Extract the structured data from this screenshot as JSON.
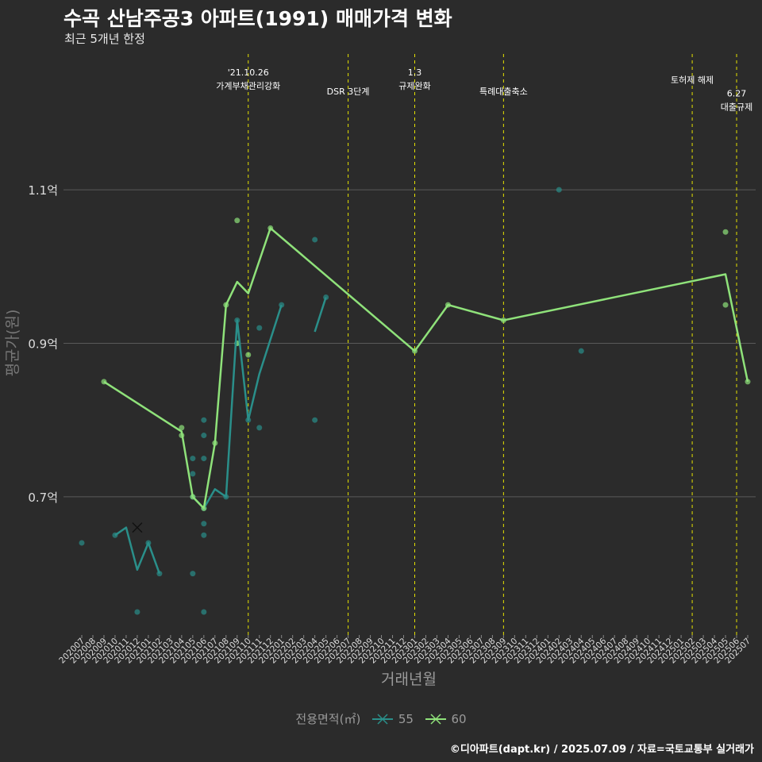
{
  "title": "수곡 산남주공3 아파트(1991) 매매가격 변화",
  "subtitle": "최근 5개년 한정",
  "caption": "©디아파트(dapt.kr) / 2025.07.09 / 자료=국토교통부 실거래가",
  "colors": {
    "background": "#2b2b2b",
    "grid": "#5a5a5a",
    "event_line": "#e5e200",
    "series_55": "#2a8f8a",
    "series_60": "#8fe27a"
  },
  "chart_data": {
    "type": "line",
    "xlabel": "거래년월",
    "ylabel": "평균가(원)",
    "x_categories": [
      "202007",
      "202008",
      "202009",
      "202010",
      "202011",
      "202012",
      "202101",
      "202102",
      "202103",
      "202104",
      "202105",
      "202106",
      "202107",
      "202108",
      "202109",
      "202110",
      "202111",
      "202112",
      "202201",
      "202202",
      "202203",
      "202204",
      "202205",
      "202206",
      "202207",
      "202208",
      "202209",
      "202210",
      "202211",
      "202212",
      "202301",
      "202302",
      "202303",
      "202304",
      "202305",
      "202306",
      "202307",
      "202308",
      "202309",
      "202310",
      "202311",
      "202312",
      "202401",
      "202402",
      "202403",
      "202404",
      "202405",
      "202406",
      "202407",
      "202408",
      "202409",
      "202410",
      "202411",
      "202412",
      "202501",
      "202502",
      "202503",
      "202504",
      "202505",
      "202506",
      "202507"
    ],
    "x_tick_labels": [
      "202007",
      "202008",
      "202009",
      "202010",
      "202011",
      "202012",
      "202101",
      "202102",
      "202103",
      "202104",
      "202105",
      "202106",
      "202107",
      "202108",
      "202109",
      "202110",
      "202111",
      "202112",
      "202201",
      "202202",
      "202203",
      "202204",
      "202205",
      "202206",
      "202207",
      "202208",
      "202209",
      "202210",
      "202211",
      "202212",
      "202301",
      "202302",
      "202303",
      "202304",
      "202305",
      "202306",
      "202307",
      "202308",
      "202309",
      "202310",
      "202311",
      "202312",
      "202401",
      "202402",
      "202403",
      "202404",
      "202405",
      "202406",
      "202407",
      "202408",
      "202409",
      "202410",
      "202411",
      "202412",
      "202501",
      "202502",
      "202503",
      "202504",
      "202505",
      "202506",
      "202507"
    ],
    "y_ticks": [
      {
        "value": 70000000,
        "label": "0.7억"
      },
      {
        "value": 90000000,
        "label": "0.9억"
      },
      {
        "value": 110000000,
        "label": "1.1억"
      }
    ],
    "ylim": [
      52000000,
      128000000
    ],
    "grid": true,
    "legend": {
      "title": "전용면적(㎡)",
      "placement": "bottom",
      "entries": [
        {
          "label": "55",
          "color": "#2a8f8a"
        },
        {
          "label": "60",
          "color": "#8fe27a"
        }
      ]
    },
    "events": [
      {
        "x": "202110",
        "lines": [
          "'21.10.26",
          "가계부채관리강화"
        ],
        "level": 0
      },
      {
        "x": "202207",
        "lines": [
          "DSR 3단계"
        ],
        "level": 1
      },
      {
        "x": "202301",
        "lines": [
          "1.3",
          "규제완화"
        ],
        "level": 0
      },
      {
        "x": "202309",
        "lines": [
          "특례대출축소"
        ],
        "level": 1
      },
      {
        "x": "202502",
        "lines": [
          "토허제 해제"
        ],
        "level": 0.4
      },
      {
        "x": "202506",
        "lines": [
          "6.27",
          "대출규제"
        ],
        "level": 1.1
      }
    ],
    "series": [
      {
        "name": "55",
        "color": "#2a8f8a",
        "line_segments": [
          [
            [
              "202010",
              65000000
            ],
            [
              "202011",
              66000000
            ],
            [
              "202012",
              60500000
            ],
            [
              "202101",
              64000000
            ],
            [
              "202102",
              60000000
            ]
          ],
          [
            [
              "202105",
              70000000
            ],
            [
              "202106",
              68500000
            ],
            [
              "202107",
              71000000
            ],
            [
              "202108",
              70000000
            ],
            [
              "202109",
              93000000
            ],
            [
              "202110",
              80000000
            ],
            [
              "202111",
              86000000
            ],
            [
              "202201",
              95000000
            ]
          ],
          [
            [
              "202204",
              91500000
            ],
            [
              "202205",
              96000000
            ]
          ]
        ],
        "points": [
          [
            "202007",
            64000000
          ],
          [
            "202010",
            65000000
          ],
          [
            "202012",
            55000000
          ],
          [
            "202101",
            64000000
          ],
          [
            "202102",
            60000000
          ],
          [
            "202105",
            75000000
          ],
          [
            "202105",
            73000000
          ],
          [
            "202105",
            60000000
          ],
          [
            "202105",
            70000000
          ],
          [
            "202106",
            80000000
          ],
          [
            "202106",
            78000000
          ],
          [
            "202106",
            75000000
          ],
          [
            "202106",
            66500000
          ],
          [
            "202106",
            65000000
          ],
          [
            "202106",
            55000000
          ],
          [
            "202106",
            68500000
          ],
          [
            "202108",
            70000000
          ],
          [
            "202109",
            93000000
          ],
          [
            "202109",
            90000000
          ],
          [
            "202110",
            80000000
          ],
          [
            "202111",
            92000000
          ],
          [
            "202111",
            79000000
          ],
          [
            "202201",
            95000000
          ],
          [
            "202204",
            103500000
          ],
          [
            "202204",
            80000000
          ],
          [
            "202205",
            96000000
          ],
          [
            "202402",
            110000000
          ],
          [
            "202404",
            89000000
          ]
        ],
        "highlight": [
          "202012",
          66000000
        ]
      },
      {
        "name": "60",
        "color": "#8fe27a",
        "line_segments": [
          [
            [
              "202009",
              85000000
            ],
            [
              "202104",
              78500000
            ],
            [
              "202105",
              70000000
            ],
            [
              "202106",
              68500000
            ],
            [
              "202107",
              77000000
            ],
            [
              "202108",
              95000000
            ],
            [
              "202109",
              98000000
            ],
            [
              "202110",
              96500000
            ],
            [
              "202112",
              105000000
            ],
            [
              "202301",
              89000000
            ],
            [
              "202304",
              95000000
            ],
            [
              "202309",
              93000000
            ],
            [
              "202505",
              99000000
            ],
            [
              "202507",
              85000000
            ]
          ]
        ],
        "points": [
          [
            "202009",
            85000000
          ],
          [
            "202104",
            79000000
          ],
          [
            "202104",
            78000000
          ],
          [
            "202105",
            70000000
          ],
          [
            "202106",
            68500000
          ],
          [
            "202107",
            77000000
          ],
          [
            "202108",
            95000000
          ],
          [
            "202109",
            106000000
          ],
          [
            "202109",
            90000000
          ],
          [
            "202110",
            88500000
          ],
          [
            "202112",
            105000000
          ],
          [
            "202301",
            89000000
          ],
          [
            "202304",
            95000000
          ],
          [
            "202309",
            93000000
          ],
          [
            "202505",
            104500000
          ],
          [
            "202505",
            95000000
          ],
          [
            "202507",
            85000000
          ]
        ]
      }
    ]
  }
}
